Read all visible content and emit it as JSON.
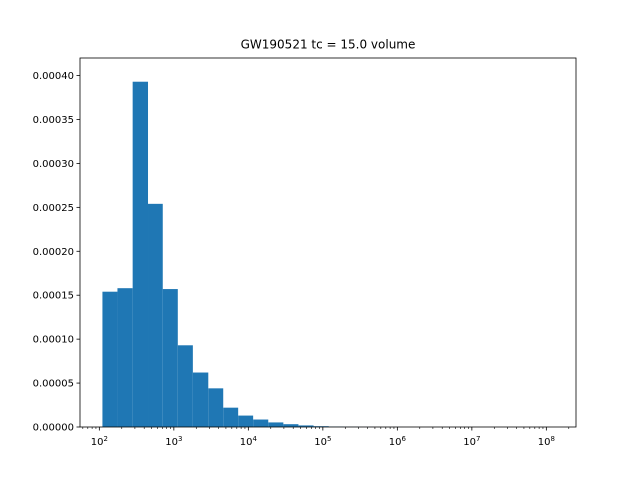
{
  "chart_data": {
    "type": "bar",
    "title": "GW190521 tc = 15.0 volume",
    "xlabel": "",
    "ylabel": "",
    "x_scale": "log",
    "xlim": [
      55,
      250000000
    ],
    "ylim": [
      0,
      0.00042
    ],
    "grid": false,
    "bar_color": "#1f77b4",
    "y_ticks": [
      {
        "value": 0.0,
        "label": "0.00000"
      },
      {
        "value": 5e-05,
        "label": "0.00005"
      },
      {
        "value": 0.0001,
        "label": "0.00010"
      },
      {
        "value": 0.00015,
        "label": "0.00015"
      },
      {
        "value": 0.0002,
        "label": "0.00020"
      },
      {
        "value": 0.00025,
        "label": "0.00025"
      },
      {
        "value": 0.0003,
        "label": "0.00030"
      },
      {
        "value": 0.00035,
        "label": "0.00035"
      },
      {
        "value": 0.0004,
        "label": "0.00040"
      }
    ],
    "x_ticks": [
      {
        "value": 100,
        "base": "10",
        "exp": "2"
      },
      {
        "value": 1000,
        "base": "10",
        "exp": "3"
      },
      {
        "value": 10000,
        "base": "10",
        "exp": "4"
      },
      {
        "value": 100000,
        "base": "10",
        "exp": "5"
      },
      {
        "value": 1000000,
        "base": "10",
        "exp": "6"
      },
      {
        "value": 10000000,
        "base": "10",
        "exp": "7"
      },
      {
        "value": 100000000,
        "base": "10",
        "exp": "8"
      }
    ],
    "bins": [
      {
        "x0": 110,
        "x1": 175,
        "value": 0.000154
      },
      {
        "x0": 175,
        "x1": 280,
        "value": 0.000158
      },
      {
        "x0": 280,
        "x1": 450,
        "value": 0.000393
      },
      {
        "x0": 450,
        "x1": 710,
        "value": 0.000254
      },
      {
        "x0": 710,
        "x1": 1130,
        "value": 0.000157
      },
      {
        "x0": 1130,
        "x1": 1800,
        "value": 9.3e-05
      },
      {
        "x0": 1800,
        "x1": 2900,
        "value": 6.2e-05
      },
      {
        "x0": 2900,
        "x1": 4600,
        "value": 4.4e-05
      },
      {
        "x0": 4600,
        "x1": 7300,
        "value": 2.2e-05
      },
      {
        "x0": 7300,
        "x1": 11600,
        "value": 1.3e-05
      },
      {
        "x0": 11600,
        "x1": 18500,
        "value": 8.5e-06
      },
      {
        "x0": 18500,
        "x1": 29500,
        "value": 5.2e-06
      },
      {
        "x0": 29500,
        "x1": 47000,
        "value": 3.2e-06
      },
      {
        "x0": 47000,
        "x1": 75000,
        "value": 1.8e-06
      },
      {
        "x0": 75000,
        "x1": 120000,
        "value": 9e-07
      },
      {
        "x0": 120000,
        "x1": 190000,
        "value": 4e-07
      },
      {
        "x0": 190000,
        "x1": 300000,
        "value": 2e-07
      },
      {
        "x0": 300000,
        "x1": 480000,
        "value": 1e-07
      },
      {
        "x0": 480000,
        "x1": 770000,
        "value": 5e-08
      },
      {
        "x0": 770000,
        "x1": 1220000,
        "value": 2e-08
      }
    ]
  }
}
